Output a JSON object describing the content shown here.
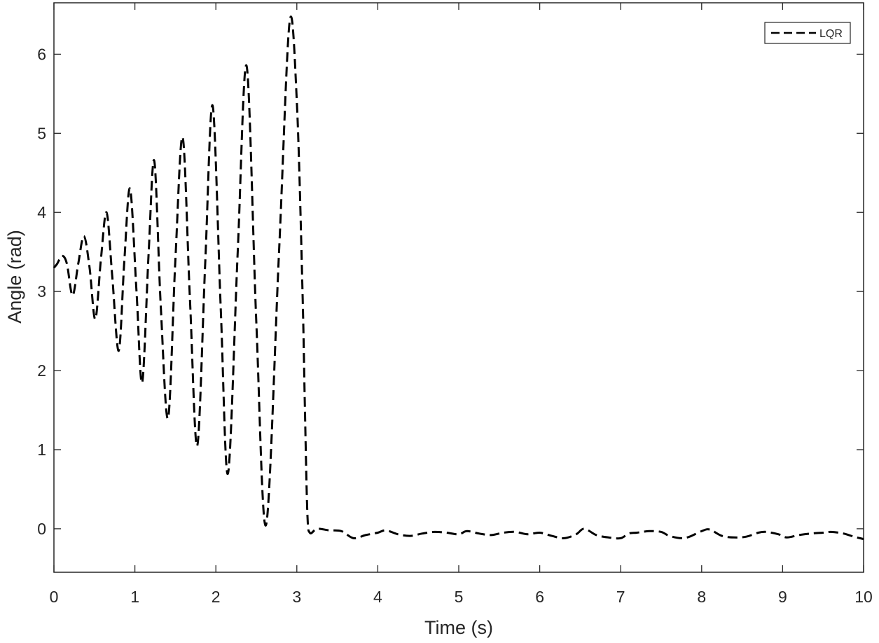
{
  "chart_data": {
    "type": "line",
    "title": "",
    "xlabel": "Time (s)",
    "ylabel": "Angle (rad)",
    "xlim": [
      0,
      10
    ],
    "ylim": [
      -0.55,
      6.65
    ],
    "xticks": [
      0,
      1,
      2,
      3,
      4,
      5,
      6,
      7,
      8,
      9,
      10
    ],
    "yticks": [
      0,
      1,
      2,
      3,
      4,
      5,
      6
    ],
    "grid": false,
    "legend_position": "top-right",
    "series": [
      {
        "name": "LQR",
        "color": "#000000",
        "line_style": "dashed",
        "points": [
          [
            0.0,
            3.3
          ],
          [
            0.04,
            3.35
          ],
          [
            0.1,
            3.45
          ],
          [
            0.16,
            3.35
          ],
          [
            0.23,
            2.95
          ],
          [
            0.3,
            3.35
          ],
          [
            0.37,
            3.7
          ],
          [
            0.44,
            3.3
          ],
          [
            0.51,
            2.65
          ],
          [
            0.58,
            3.4
          ],
          [
            0.65,
            4.0
          ],
          [
            0.72,
            3.2
          ],
          [
            0.8,
            2.25
          ],
          [
            0.87,
            3.4
          ],
          [
            0.94,
            4.3
          ],
          [
            1.02,
            3.0
          ],
          [
            1.09,
            1.85
          ],
          [
            1.17,
            3.5
          ],
          [
            1.24,
            4.65
          ],
          [
            1.32,
            2.8
          ],
          [
            1.41,
            1.4
          ],
          [
            1.5,
            3.4
          ],
          [
            1.59,
            4.95
          ],
          [
            1.68,
            2.9
          ],
          [
            1.77,
            1.05
          ],
          [
            1.87,
            3.4
          ],
          [
            1.96,
            5.35
          ],
          [
            2.06,
            2.8
          ],
          [
            2.15,
            0.7
          ],
          [
            2.27,
            3.5
          ],
          [
            2.38,
            5.85
          ],
          [
            2.5,
            2.6
          ],
          [
            2.62,
            0.05
          ],
          [
            2.78,
            3.5
          ],
          [
            2.91,
            6.4
          ],
          [
            3.0,
            5.4
          ],
          [
            3.07,
            3.0
          ],
          [
            3.1,
            1.5
          ],
          [
            3.13,
            0.2
          ],
          [
            3.16,
            -0.05
          ],
          [
            3.25,
            0.0
          ],
          [
            3.4,
            -0.02
          ],
          [
            3.55,
            -0.03
          ],
          [
            3.7,
            -0.12
          ],
          [
            3.85,
            -0.08
          ],
          [
            4.0,
            -0.05
          ],
          [
            4.1,
            -0.02
          ],
          [
            4.25,
            -0.07
          ],
          [
            4.4,
            -0.09
          ],
          [
            4.55,
            -0.06
          ],
          [
            4.7,
            -0.04
          ],
          [
            4.85,
            -0.05
          ],
          [
            5.0,
            -0.07
          ],
          [
            5.1,
            -0.03
          ],
          [
            5.25,
            -0.06
          ],
          [
            5.4,
            -0.08
          ],
          [
            5.55,
            -0.05
          ],
          [
            5.7,
            -0.04
          ],
          [
            5.85,
            -0.07
          ],
          [
            6.0,
            -0.05
          ],
          [
            6.15,
            -0.09
          ],
          [
            6.3,
            -0.12
          ],
          [
            6.45,
            -0.07
          ],
          [
            6.55,
            0.0
          ],
          [
            6.7,
            -0.08
          ],
          [
            6.85,
            -0.11
          ],
          [
            7.0,
            -0.12
          ],
          [
            7.1,
            -0.06
          ],
          [
            7.2,
            -0.05
          ],
          [
            7.35,
            -0.03
          ],
          [
            7.5,
            -0.04
          ],
          [
            7.6,
            -0.09
          ],
          [
            7.75,
            -0.12
          ],
          [
            7.85,
            -0.1
          ],
          [
            8.0,
            -0.03
          ],
          [
            8.1,
            -0.01
          ],
          [
            8.25,
            -0.09
          ],
          [
            8.4,
            -0.11
          ],
          [
            8.55,
            -0.1
          ],
          [
            8.7,
            -0.05
          ],
          [
            8.8,
            -0.04
          ],
          [
            8.95,
            -0.07
          ],
          [
            9.05,
            -0.11
          ],
          [
            9.2,
            -0.08
          ],
          [
            9.35,
            -0.06
          ],
          [
            9.5,
            -0.05
          ],
          [
            9.6,
            -0.04
          ],
          [
            9.75,
            -0.06
          ],
          [
            9.88,
            -0.1
          ],
          [
            10.0,
            -0.13
          ]
        ]
      }
    ]
  }
}
